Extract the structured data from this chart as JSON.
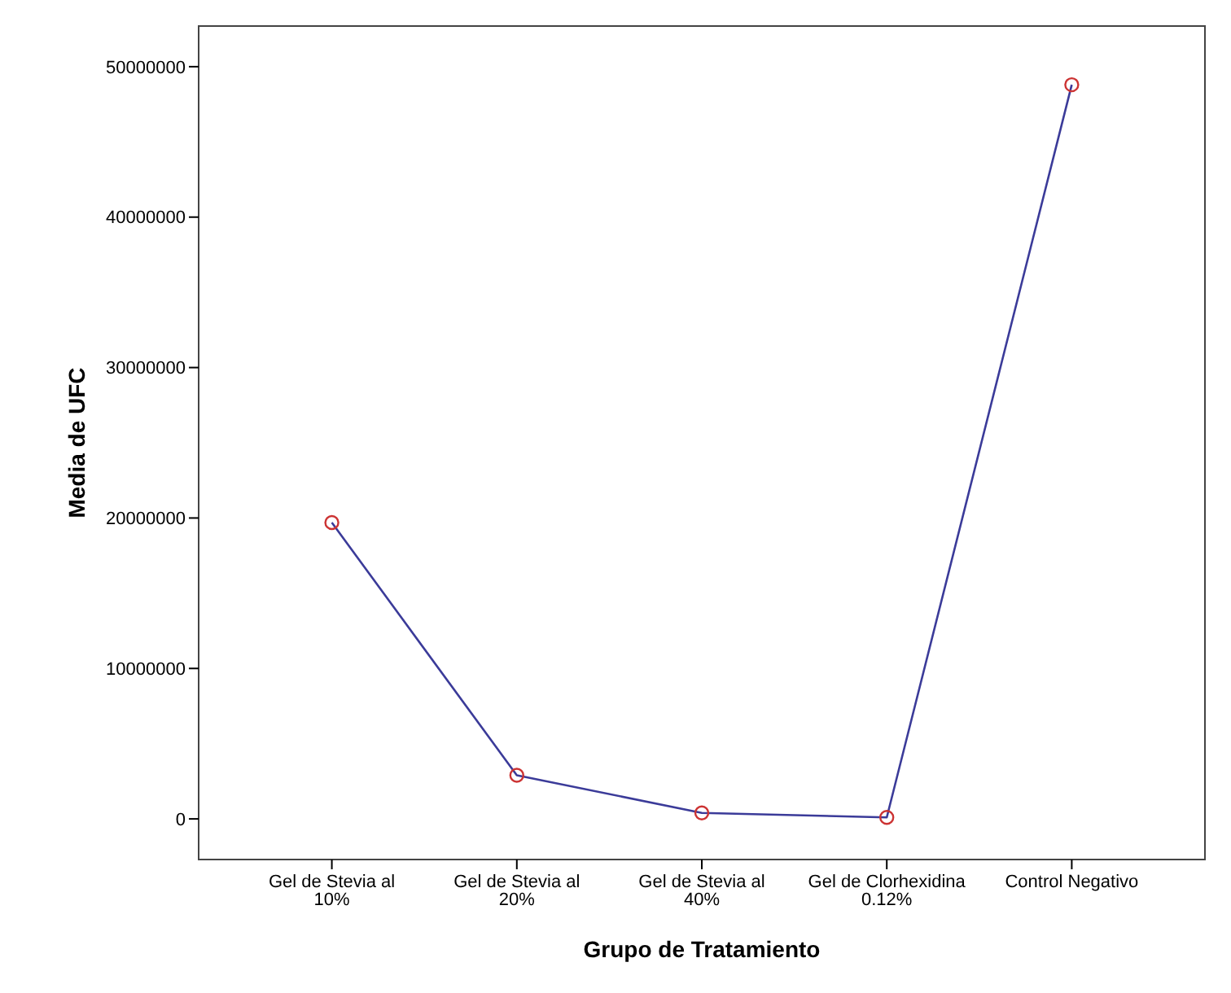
{
  "chart_data": {
    "type": "line",
    "xlabel": "Grupo de Tratamiento",
    "ylabel": "Media de UFC",
    "categories": [
      "Gel de Stevia al 10%",
      "Gel de Stevia al 20%",
      "Gel de Stevia al 40%",
      "Gel de Clorhexidina 0.12%",
      "Control Negativo"
    ],
    "series": [
      {
        "color": "#3b3b99",
        "colors": [
          "#cc3333",
          "#cc3333",
          "#cc3333",
          "#cc3333",
          "#cc3333"
        ],
        "values": [
          19700000,
          2900000,
          400000,
          100000,
          48800000
        ]
      }
    ],
    "ylim": [
      -2700000,
      52700000
    ],
    "yticks": [
      0,
      10000000,
      20000000,
      30000000,
      40000000,
      50000000
    ],
    "marker": "circle",
    "line_style": "solid"
  }
}
